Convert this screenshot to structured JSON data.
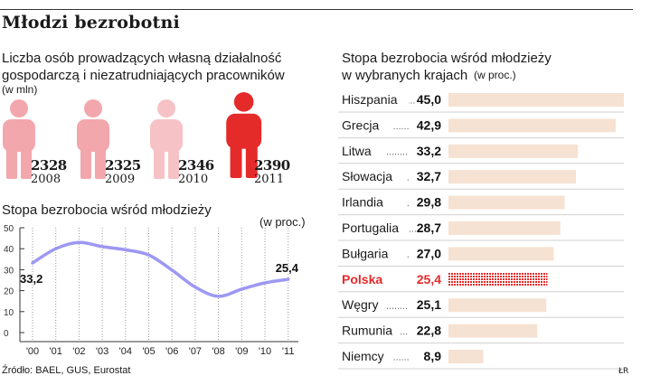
{
  "title": "Młodzi bezrobotni",
  "left_top": {
    "subtitle_line1": "Liczba osób prowadzących własną działalność",
    "subtitle_line2": "gospodarczą i niezatrudniających pracowników",
    "unit": "(w mln)",
    "figures": [
      {
        "value": "2328",
        "year": "2008",
        "highlight": false
      },
      {
        "value": "2325",
        "year": "2009",
        "highlight": false
      },
      {
        "value": "2346",
        "year": "2010",
        "highlight": false
      },
      {
        "value": "2390",
        "year": "2011",
        "highlight": true
      }
    ]
  },
  "left_bottom": {
    "subtitle": "Stopa bezrobocia wśród młodzieży",
    "unit": "(w proc.)"
  },
  "right": {
    "subtitle_line1": "Stopa bezrobocia wśród młodzieży",
    "subtitle_line2": "w wybranych krajach",
    "unit": "(w proc.)"
  },
  "source": "Źródło: BAEL, GUS, Eurostat",
  "credit": "ŁR",
  "colors": {
    "pink": "#f2a7ad",
    "pink_light": "#f7c2c6",
    "red": "#e52a2a",
    "line": "#9d98f2",
    "bar": "#f6e2d2",
    "bar_highlight": "#e52a2a",
    "dots": "#9a9a9a"
  },
  "chart_data": [
    {
      "type": "line",
      "title": "Stopa bezrobocia wśród młodzieży",
      "ylabel": "(w proc.)",
      "x": [
        "'00",
        "'01",
        "'02",
        "'03",
        "'04",
        "'05",
        "'06",
        "'07",
        "'08",
        "'09",
        "'10",
        "'11"
      ],
      "values": [
        33.2,
        40,
        43,
        41,
        39.5,
        37,
        29.8,
        21.7,
        17.3,
        20.7,
        23.7,
        25.4
      ],
      "ylim": [
        0,
        50
      ],
      "yticks": [
        0,
        10,
        20,
        30,
        40,
        50
      ],
      "data_labels": [
        {
          "index": 0,
          "text": "33,2"
        },
        {
          "index": 11,
          "text": "25,4"
        }
      ],
      "grid": "vertical-dotted"
    },
    {
      "type": "bar",
      "title": "Stopa bezrobocia wśród młodzieży w wybranych krajach",
      "ylabel": "(w proc.)",
      "categories": [
        "Hiszpania",
        "Grecja",
        "Litwa",
        "Słowacja",
        "Irlandia",
        "Portugalia",
        "Bułgaria",
        "Polska",
        "Węgry",
        "Rumunia",
        "Niemcy"
      ],
      "values": [
        45.0,
        42.9,
        33.2,
        32.7,
        29.8,
        28.7,
        27.0,
        25.4,
        25.1,
        22.8,
        8.9
      ],
      "value_labels": [
        "45,0",
        "42,9",
        "33,2",
        "32,7",
        "29,8",
        "28,7",
        "27,0",
        "25,4",
        "25,1",
        "22,8",
        "8,9"
      ],
      "highlight": "Polska",
      "xlim": [
        0,
        45
      ]
    }
  ]
}
